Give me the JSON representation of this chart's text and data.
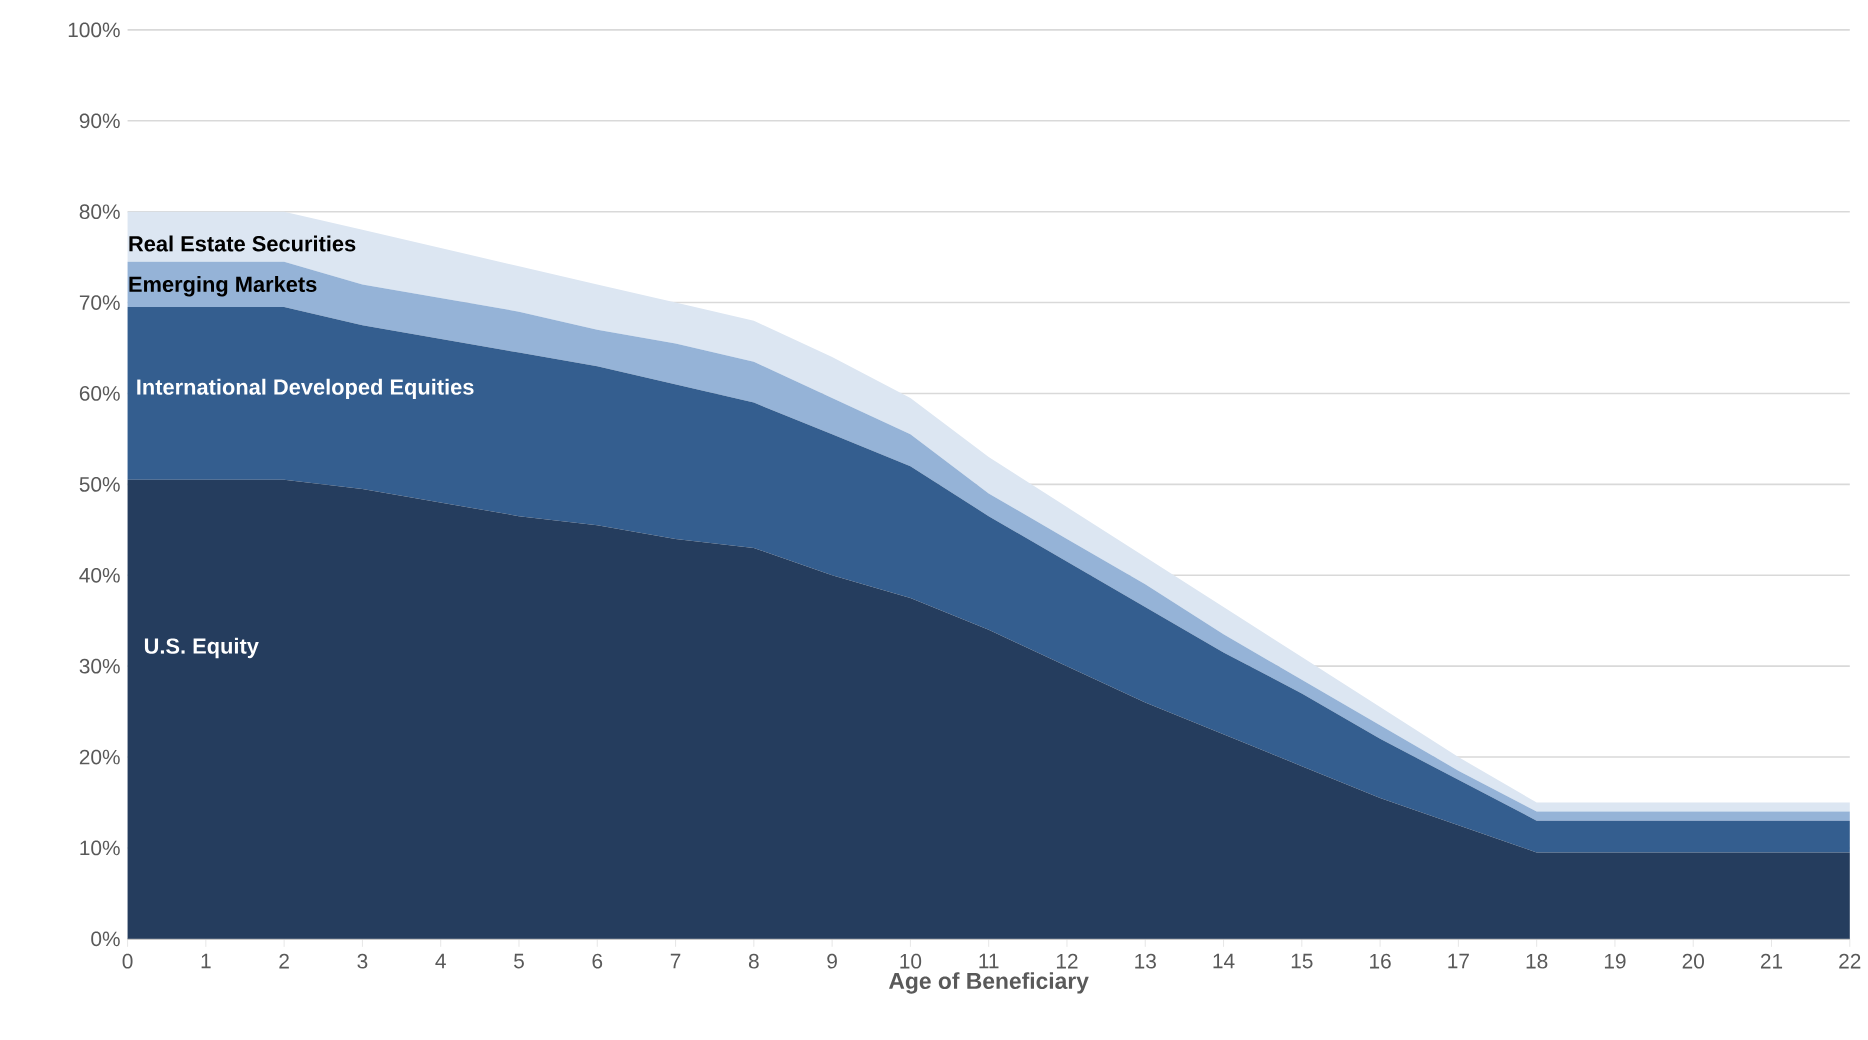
{
  "chart_data": {
    "type": "area",
    "stacked": true,
    "xlabel": "Age of Beneficiary",
    "x": [
      0,
      1,
      2,
      3,
      4,
      5,
      6,
      7,
      8,
      9,
      10,
      11,
      12,
      13,
      14,
      15,
      16,
      17,
      18,
      19,
      20,
      21,
      22
    ],
    "xlim": [
      0,
      22
    ],
    "xticks": [
      0,
      1,
      2,
      3,
      4,
      5,
      6,
      7,
      8,
      9,
      10,
      11,
      12,
      13,
      14,
      15,
      16,
      17,
      18,
      19,
      20,
      21,
      22
    ],
    "ylim": [
      0,
      100
    ],
    "yticks": [
      {
        "value": 0,
        "label": "0%"
      },
      {
        "value": 10,
        "label": "10%"
      },
      {
        "value": 20,
        "label": "20%"
      },
      {
        "value": 30,
        "label": "30%"
      },
      {
        "value": 40,
        "label": "40%"
      },
      {
        "value": 50,
        "label": "50%"
      },
      {
        "value": 60,
        "label": "60%"
      },
      {
        "value": 70,
        "label": "70%"
      },
      {
        "value": 80,
        "label": "80%"
      },
      {
        "value": 90,
        "label": "90%"
      },
      {
        "value": 100,
        "label": "100%"
      }
    ],
    "grid": "y",
    "legend": false,
    "series": [
      {
        "name": "U.S. Equity",
        "color": "#253d5e",
        "values": [
          50.5,
          50.5,
          50.5,
          49.5,
          48,
          46.5,
          45.5,
          44,
          43,
          40,
          37.5,
          34,
          30,
          26,
          22.5,
          19,
          15.5,
          12.5,
          9.5,
          9.5,
          9.5,
          9.5,
          9.5
        ]
      },
      {
        "name": "International Developed Equities",
        "color": "#345e8f",
        "values": [
          19,
          19,
          19,
          18,
          18,
          18,
          17.5,
          17,
          16,
          15.5,
          14.5,
          12.5,
          11.5,
          10.5,
          9,
          8,
          6.5,
          5,
          3.5,
          3.5,
          3.5,
          3.5,
          3.5
        ]
      },
      {
        "name": "Emerging Markets",
        "color": "#95b3d7",
        "values": [
          5,
          5,
          5,
          4.5,
          4.5,
          4.5,
          4,
          4.5,
          4.5,
          4,
          3.5,
          2.5,
          2.5,
          2.5,
          2,
          1.5,
          1.5,
          1,
          1,
          1,
          1,
          1,
          1
        ]
      },
      {
        "name": "Real Estate Securities",
        "color": "#dce6f2",
        "values": [
          5.5,
          5.5,
          5.5,
          6,
          5.5,
          5,
          5,
          4.5,
          4.5,
          4.5,
          4,
          4,
          3.5,
          3,
          3,
          2.5,
          2,
          1.5,
          1,
          1,
          1,
          1,
          1
        ]
      }
    ]
  }
}
